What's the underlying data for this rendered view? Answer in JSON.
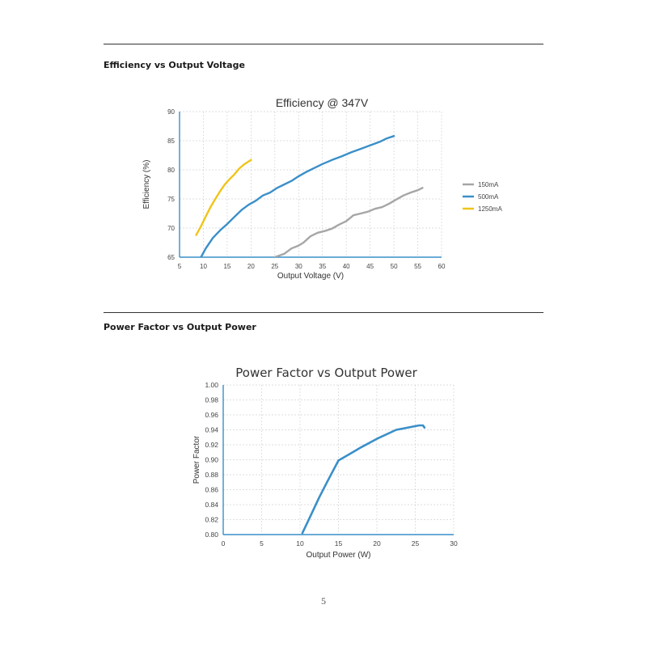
{
  "sections": {
    "efficiency_heading": "Efficiency vs Output Voltage",
    "power_factor_heading": "Power Factor vs Output Power"
  },
  "page_number": "5",
  "chart_data": [
    {
      "type": "line",
      "title": "Efficiency @ 347V",
      "xlabel": "Output Voltage (V)",
      "ylabel": "Efficiency (%)",
      "xlim": [
        5,
        60
      ],
      "ylim": [
        65,
        90
      ],
      "xticks": [
        "5",
        "10",
        "15",
        "20",
        "25",
        "30",
        "35",
        "40",
        "45",
        "50",
        "55",
        "60"
      ],
      "yticks": [
        "65",
        "70",
        "75",
        "80",
        "85",
        "90"
      ],
      "grid": true,
      "legend": "right",
      "series": [
        {
          "name": "150mA",
          "color": "#a6a6a6",
          "x": [
            25,
            27,
            28.5,
            30,
            31,
            32.5,
            34,
            35.5,
            37,
            38.5,
            40,
            41.5,
            43,
            44.5,
            46,
            47.5,
            49,
            50.5,
            52,
            53.5,
            55,
            56
          ],
          "y": [
            65,
            65.6,
            66.5,
            67,
            67.5,
            68.6,
            69.2,
            69.5,
            69.9,
            70.6,
            71.2,
            72.2,
            72.5,
            72.8,
            73.3,
            73.6,
            74.2,
            74.9,
            75.6,
            76.1,
            76.5,
            76.9
          ]
        },
        {
          "name": "500mA",
          "color": "#3a8fc8",
          "x": [
            9.5,
            10.5,
            12,
            13.5,
            15,
            16.5,
            18,
            19.5,
            21,
            22.5,
            24,
            25.5,
            27,
            28.5,
            30,
            31.5,
            33,
            35,
            37,
            39,
            41,
            43,
            45,
            47,
            48.5,
            50
          ],
          "y": [
            65,
            66.5,
            68.3,
            69.6,
            70.7,
            71.9,
            73.1,
            74,
            74.7,
            75.6,
            76.1,
            76.9,
            77.5,
            78.1,
            78.9,
            79.6,
            80.2,
            81,
            81.7,
            82.3,
            83,
            83.6,
            84.2,
            84.8,
            85.4,
            85.8
          ]
        },
        {
          "name": "1250mA",
          "color": "#f0c419",
          "x": [
            8.5,
            9.5,
            10.5,
            11.5,
            12.5,
            13.5,
            14.5,
            15.5,
            16.5,
            17.5,
            18.5,
            20
          ],
          "y": [
            68.8,
            70.3,
            72,
            73.6,
            75,
            76.3,
            77.5,
            78.4,
            79.2,
            80.2,
            80.9,
            81.7
          ]
        }
      ]
    },
    {
      "type": "line",
      "title": "Power Factor vs Output Power",
      "xlabel": "Output Power (W)",
      "ylabel": "Power Factor",
      "xlim": [
        0,
        30
      ],
      "ylim": [
        0.8,
        1.0
      ],
      "xticks": [
        "0",
        "5",
        "10",
        "15",
        "20",
        "25",
        "30"
      ],
      "yticks": [
        "0.80",
        "0.82",
        "0.84",
        "0.86",
        "0.88",
        "0.90",
        "0.92",
        "0.94",
        "0.96",
        "0.98",
        "1.00"
      ],
      "grid": true,
      "series": [
        {
          "color": "#3a8fc8",
          "x": [
            10.3,
            11.5,
            12.5,
            13.5,
            15,
            16.5,
            18,
            20,
            22.5,
            25.5,
            26,
            26.2
          ],
          "y": [
            0.802,
            0.828,
            0.85,
            0.87,
            0.899,
            0.908,
            0.917,
            0.928,
            0.94,
            0.946,
            0.946,
            0.943
          ]
        }
      ]
    }
  ]
}
